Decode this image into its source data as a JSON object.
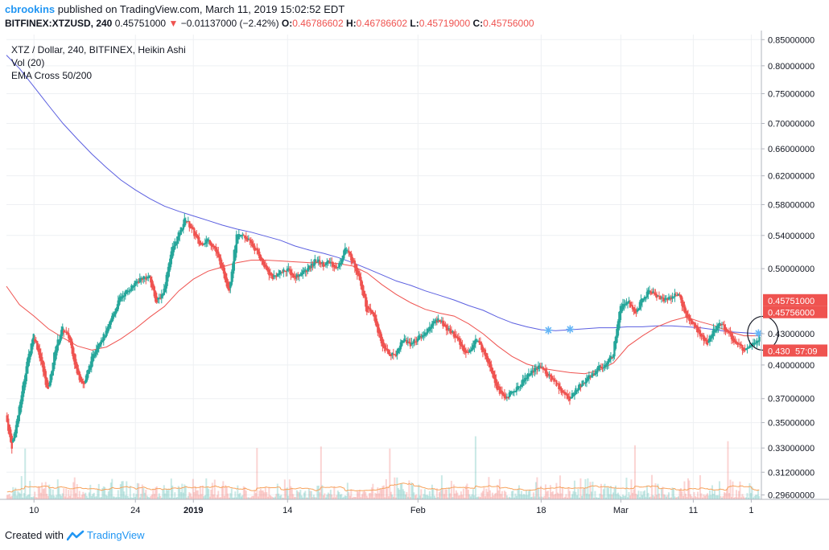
{
  "header": {
    "author": "cbrookins",
    "published_text": "published on TradingView.com, March 11, 2019 15:02:52 EDT",
    "symbol": "BITFINEX:XTZUSD, 240",
    "last": "0.45751000",
    "arrow": "▼",
    "change": "−0.01137000 (−2.42%)",
    "o_label": "O:",
    "o": "0.46786602",
    "h_label": "H:",
    "h": "0.46786602",
    "l_label": "L:",
    "l": "0.45719000",
    "c_label": "C:",
    "c": "0.45756000"
  },
  "legend": {
    "title": "XTZ / Dollar, 240, BITFINEX, Heikin Ashi",
    "vol": "Vol (20)",
    "ema": "EMA Cross 50/200"
  },
  "footer": {
    "created_with": "Created with",
    "brand": "TradingView",
    "brand_icon": "tradingview-logo-icon"
  },
  "colors": {
    "up": "#26a69a",
    "down": "#ef5350",
    "ema50": "#ef5350",
    "ema200": "#5b5fe0",
    "vol_ma": "#f7a35c",
    "accent": "#2196f3"
  },
  "chart_data": {
    "type": "candlestick",
    "style": "Heikin Ashi",
    "title": "XTZ / Dollar, 240, BITFINEX, Heikin Ashi",
    "y_axis": {
      "position": "right",
      "ticks": [
        "0.85000000",
        "0.80000000",
        "0.75000000",
        "0.70000000",
        "0.66000000",
        "0.62000000",
        "0.58000000",
        "0.54000000",
        "0.50000000",
        "0.43000000",
        "0.40000000",
        "0.37000000",
        "0.35000000",
        "0.33000000",
        "0.31200000",
        "0.29600000"
      ],
      "tick_values": [
        0.85,
        0.8,
        0.75,
        0.7,
        0.66,
        0.62,
        0.58,
        0.54,
        0.5,
        0.43,
        0.4,
        0.37,
        0.35,
        0.33,
        0.312,
        0.296
      ],
      "scale": "log",
      "range": [
        0.293,
        0.86
      ]
    },
    "x_axis": {
      "ticks": [
        {
          "label": "10",
          "day": 10
        },
        {
          "label": "24",
          "day": 24
        },
        {
          "label": "2019",
          "day": 32,
          "bold": true
        },
        {
          "label": "14",
          "day": 45
        },
        {
          "label": "Feb",
          "day": 63
        },
        {
          "label": "18",
          "day": 80
        },
        {
          "label": "Mar",
          "day": 91
        },
        {
          "label": "11",
          "day": 101
        },
        {
          "label": "1",
          "day": 109
        }
      ],
      "range_days": [
        6.2,
        110.4
      ],
      "day_zero": "2018-12-01"
    },
    "price_labels": [
      {
        "value": 0.45751,
        "text": "0.45751000",
        "color": "#ef5350"
      },
      {
        "value": 0.45756,
        "text": "0.45756000",
        "color": "#ef5350"
      },
      {
        "value": 0.4305,
        "text": "0.430",
        "color": "#ef5350",
        "countdown": "57:09"
      }
    ],
    "price_path": [
      [
        6.2,
        0.356
      ],
      [
        7,
        0.33
      ],
      [
        8,
        0.36
      ],
      [
        9,
        0.398
      ],
      [
        10,
        0.43
      ],
      [
        11,
        0.405
      ],
      [
        12,
        0.375
      ],
      [
        13,
        0.415
      ],
      [
        14,
        0.435
      ],
      [
        15,
        0.425
      ],
      [
        16,
        0.392
      ],
      [
        17,
        0.382
      ],
      [
        18,
        0.405
      ],
      [
        19,
        0.422
      ],
      [
        20,
        0.43
      ],
      [
        21,
        0.45
      ],
      [
        22,
        0.468
      ],
      [
        23,
        0.475
      ],
      [
        24,
        0.483
      ],
      [
        25,
        0.49
      ],
      [
        26,
        0.49
      ],
      [
        27,
        0.462
      ],
      [
        28,
        0.475
      ],
      [
        29,
        0.52
      ],
      [
        30,
        0.54
      ],
      [
        31,
        0.562
      ],
      [
        32,
        0.545
      ],
      [
        33,
        0.528
      ],
      [
        34,
        0.535
      ],
      [
        35,
        0.525
      ],
      [
        36,
        0.5
      ],
      [
        37,
        0.475
      ],
      [
        38,
        0.538
      ],
      [
        39,
        0.54
      ],
      [
        40,
        0.53
      ],
      [
        41,
        0.518
      ],
      [
        42,
        0.5
      ],
      [
        43,
        0.49
      ],
      [
        44,
        0.495
      ],
      [
        45,
        0.5
      ],
      [
        46,
        0.49
      ],
      [
        47,
        0.495
      ],
      [
        48,
        0.5
      ],
      [
        49,
        0.51
      ],
      [
        50,
        0.505
      ],
      [
        51,
        0.508
      ],
      [
        52,
        0.5
      ],
      [
        53,
        0.525
      ],
      [
        54,
        0.51
      ],
      [
        55,
        0.49
      ],
      [
        56,
        0.455
      ],
      [
        57,
        0.448
      ],
      [
        58,
        0.42
      ],
      [
        59,
        0.41
      ],
      [
        60,
        0.41
      ],
      [
        61,
        0.425
      ],
      [
        62,
        0.42
      ],
      [
        63,
        0.425
      ],
      [
        64,
        0.43
      ],
      [
        65,
        0.44
      ],
      [
        66,
        0.445
      ],
      [
        67,
        0.435
      ],
      [
        68,
        0.43
      ],
      [
        69,
        0.418
      ],
      [
        70,
        0.41
      ],
      [
        71,
        0.425
      ],
      [
        72,
        0.415
      ],
      [
        73,
        0.4
      ],
      [
        74,
        0.38
      ],
      [
        75,
        0.37
      ],
      [
        76,
        0.375
      ],
      [
        77,
        0.38
      ],
      [
        78,
        0.39
      ],
      [
        79,
        0.395
      ],
      [
        80,
        0.4
      ],
      [
        81,
        0.39
      ],
      [
        82,
        0.385
      ],
      [
        83,
        0.375
      ],
      [
        84,
        0.37
      ],
      [
        85,
        0.378
      ],
      [
        86,
        0.385
      ],
      [
        87,
        0.39
      ],
      [
        88,
        0.398
      ],
      [
        89,
        0.4
      ],
      [
        90,
        0.41
      ],
      [
        91,
        0.46
      ],
      [
        92,
        0.465
      ],
      [
        93,
        0.45
      ],
      [
        94,
        0.465
      ],
      [
        95,
        0.475
      ],
      [
        96,
        0.47
      ],
      [
        97,
        0.465
      ],
      [
        98,
        0.468
      ],
      [
        99,
        0.472
      ],
      [
        100,
        0.45
      ],
      [
        101,
        0.44
      ],
      [
        102,
        0.43
      ],
      [
        103,
        0.42
      ],
      [
        104,
        0.435
      ],
      [
        105,
        0.44
      ],
      [
        106,
        0.43
      ],
      [
        107,
        0.42
      ],
      [
        108,
        0.415
      ],
      [
        109,
        0.42
      ],
      [
        110,
        0.425
      ]
    ],
    "ema50_path": [
      [
        6.2,
        0.48
      ],
      [
        8,
        0.46
      ],
      [
        10,
        0.448
      ],
      [
        12,
        0.435
      ],
      [
        14,
        0.426
      ],
      [
        16,
        0.418
      ],
      [
        18,
        0.414
      ],
      [
        20,
        0.417
      ],
      [
        22,
        0.425
      ],
      [
        24,
        0.435
      ],
      [
        26,
        0.447
      ],
      [
        28,
        0.458
      ],
      [
        30,
        0.475
      ],
      [
        32,
        0.488
      ],
      [
        34,
        0.497
      ],
      [
        36,
        0.502
      ],
      [
        38,
        0.507
      ],
      [
        40,
        0.51
      ],
      [
        42,
        0.51
      ],
      [
        44,
        0.509
      ],
      [
        46,
        0.508
      ],
      [
        48,
        0.507
      ],
      [
        50,
        0.507
      ],
      [
        52,
        0.506
      ],
      [
        54,
        0.503
      ],
      [
        56,
        0.495
      ],
      [
        58,
        0.482
      ],
      [
        60,
        0.471
      ],
      [
        62,
        0.462
      ],
      [
        64,
        0.455
      ],
      [
        66,
        0.451
      ],
      [
        68,
        0.448
      ],
      [
        70,
        0.44
      ],
      [
        72,
        0.43
      ],
      [
        74,
        0.418
      ],
      [
        76,
        0.408
      ],
      [
        78,
        0.401
      ],
      [
        80,
        0.397
      ],
      [
        82,
        0.395
      ],
      [
        84,
        0.393
      ],
      [
        86,
        0.392
      ],
      [
        88,
        0.395
      ],
      [
        90,
        0.402
      ],
      [
        92,
        0.418
      ],
      [
        94,
        0.428
      ],
      [
        96,
        0.437
      ],
      [
        98,
        0.443
      ],
      [
        100,
        0.447
      ],
      [
        102,
        0.442
      ],
      [
        104,
        0.438
      ],
      [
        106,
        0.432
      ],
      [
        108,
        0.428
      ],
      [
        110,
        0.428
      ]
    ],
    "ema200_path": [
      [
        6.2,
        0.82
      ],
      [
        8,
        0.795
      ],
      [
        10,
        0.762
      ],
      [
        12,
        0.73
      ],
      [
        14,
        0.7
      ],
      [
        16,
        0.675
      ],
      [
        18,
        0.652
      ],
      [
        20,
        0.632
      ],
      [
        22,
        0.614
      ],
      [
        24,
        0.6
      ],
      [
        26,
        0.588
      ],
      [
        28,
        0.578
      ],
      [
        30,
        0.571
      ],
      [
        32,
        0.565
      ],
      [
        34,
        0.559
      ],
      [
        36,
        0.553
      ],
      [
        38,
        0.548
      ],
      [
        40,
        0.544
      ],
      [
        42,
        0.539
      ],
      [
        44,
        0.534
      ],
      [
        46,
        0.527
      ],
      [
        48,
        0.522
      ],
      [
        50,
        0.518
      ],
      [
        52,
        0.513
      ],
      [
        54,
        0.507
      ],
      [
        56,
        0.5
      ],
      [
        58,
        0.493
      ],
      [
        60,
        0.486
      ],
      [
        62,
        0.481
      ],
      [
        64,
        0.475
      ],
      [
        66,
        0.47
      ],
      [
        68,
        0.465
      ],
      [
        70,
        0.459
      ],
      [
        72,
        0.454
      ],
      [
        74,
        0.447
      ],
      [
        76,
        0.441
      ],
      [
        78,
        0.437
      ],
      [
        80,
        0.434
      ],
      [
        82,
        0.433
      ],
      [
        84,
        0.434
      ],
      [
        86,
        0.435
      ],
      [
        88,
        0.436
      ],
      [
        90,
        0.436
      ],
      [
        92,
        0.437
      ],
      [
        94,
        0.437
      ],
      [
        96,
        0.438
      ],
      [
        98,
        0.438
      ],
      [
        100,
        0.437
      ],
      [
        102,
        0.436
      ],
      [
        104,
        0.434
      ],
      [
        106,
        0.432
      ],
      [
        108,
        0.431
      ],
      [
        110,
        0.43
      ]
    ],
    "markers": [
      {
        "day": 81,
        "value": 0.4335
      },
      {
        "day": 84,
        "value": 0.4345
      },
      {
        "day": 110,
        "value": 0.4305
      }
    ],
    "circle": {
      "day": 110.6,
      "value": 0.4305
    }
  }
}
